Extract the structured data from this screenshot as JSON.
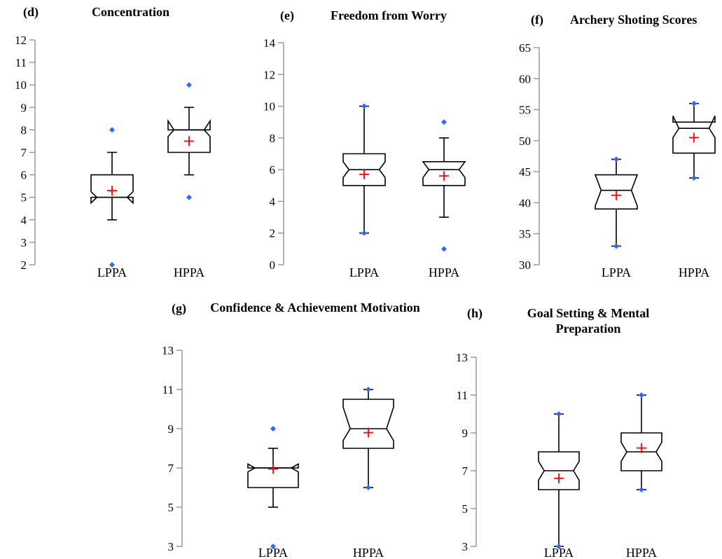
{
  "chart_data": [
    {
      "panel": "(d)",
      "title": "Concentration",
      "type": "box",
      "categories": [
        "LPPA",
        "HPPA"
      ],
      "ylim": [
        2,
        12
      ],
      "yticks": [
        2,
        3,
        4,
        5,
        6,
        7,
        8,
        9,
        10,
        11,
        12
      ],
      "boxes": [
        {
          "category": "LPPA",
          "min": 4,
          "q1": 5,
          "median": 5,
          "q3": 6,
          "max": 7,
          "mean": 5.3,
          "notch_low": 4.75,
          "notch_high": 5.25,
          "outliers": [
            2,
            8
          ]
        },
        {
          "category": "HPPA",
          "min": 6,
          "q1": 7,
          "median": 8,
          "q3": 8,
          "max": 9,
          "mean": 7.5,
          "notch_low": 7.7,
          "notch_high": 8.4,
          "outliers": [
            5,
            10
          ]
        }
      ]
    },
    {
      "panel": "(e)",
      "title": "Freedom from Worry",
      "type": "box",
      "categories": [
        "LPPA",
        "HPPA"
      ],
      "ylim": [
        0,
        14
      ],
      "yticks": [
        0,
        2,
        4,
        6,
        8,
        10,
        12,
        14
      ],
      "boxes": [
        {
          "category": "LPPA",
          "min": 2,
          "q1": 5,
          "median": 6,
          "q3": 7,
          "max": 10,
          "mean": 5.7,
          "notch_low": 5.5,
          "notch_high": 6.5,
          "outliers": [
            2,
            10
          ]
        },
        {
          "category": "HPPA",
          "min": 3,
          "q1": 5,
          "median": 6,
          "q3": 6.5,
          "max": 8,
          "mean": 5.6,
          "notch_low": 5.5,
          "notch_high": 6.5,
          "outliers": [
            1,
            9
          ]
        }
      ]
    },
    {
      "panel": "(f)",
      "title": "Archery Shoting Scores",
      "type": "box",
      "categories": [
        "LPPA",
        "HPPA"
      ],
      "ylim": [
        30,
        65
      ],
      "yticks": [
        30,
        35,
        40,
        45,
        50,
        55,
        60,
        65
      ],
      "boxes": [
        {
          "category": "LPPA",
          "min": 33,
          "q1": 39,
          "median": 42,
          "q3": 44.5,
          "max": 47,
          "mean": 41.2,
          "notch_low": 39.5,
          "notch_high": 44.5,
          "outliers": [
            33,
            47
          ]
        },
        {
          "category": "HPPA",
          "min": 44,
          "q1": 48,
          "median": 52,
          "q3": 53,
          "max": 56,
          "mean": 50.5,
          "notch_low": 50.5,
          "notch_high": 54,
          "outliers": [
            44,
            56
          ]
        }
      ]
    },
    {
      "panel": "(g)",
      "title": "Confidence & Achievement Motivation",
      "type": "box",
      "categories": [
        "LPPA",
        "HPPA"
      ],
      "ylim": [
        3,
        13
      ],
      "yticks": [
        3,
        5,
        7,
        9,
        11,
        13
      ],
      "boxes": [
        {
          "category": "LPPA",
          "min": 5,
          "q1": 6,
          "median": 7,
          "q3": 7,
          "max": 8,
          "mean": 6.95,
          "notch_low": 6.8,
          "notch_high": 7.2,
          "outliers": [
            3,
            9
          ]
        },
        {
          "category": "HPPA",
          "min": 6,
          "q1": 8,
          "median": 9,
          "q3": 10.5,
          "max": 11,
          "mean": 8.8,
          "notch_low": 8.4,
          "notch_high": 10.1,
          "outliers": [
            6,
            11
          ]
        }
      ]
    },
    {
      "panel": "(h)",
      "title": "Goal Setting & Mental Preparation",
      "type": "box",
      "categories": [
        "LPPA",
        "HPPA"
      ],
      "ylim": [
        3,
        13
      ],
      "yticks": [
        3,
        5,
        7,
        9,
        11,
        13
      ],
      "boxes": [
        {
          "category": "LPPA",
          "min": 3,
          "q1": 6,
          "median": 7,
          "q3": 8,
          "max": 10,
          "mean": 6.6,
          "notch_low": 6.5,
          "notch_high": 7.5,
          "outliers": [
            3,
            10
          ]
        },
        {
          "category": "HPPA",
          "min": 6,
          "q1": 7,
          "median": 8,
          "q3": 9,
          "max": 11,
          "mean": 8.2,
          "notch_low": 7.5,
          "notch_high": 8.5,
          "outliers": [
            6,
            11
          ]
        }
      ]
    }
  ],
  "colors": {
    "axis": "#8c8c8c",
    "box": "#000000",
    "mean_marker": "#ff0000",
    "outlier": "#3366ff"
  }
}
